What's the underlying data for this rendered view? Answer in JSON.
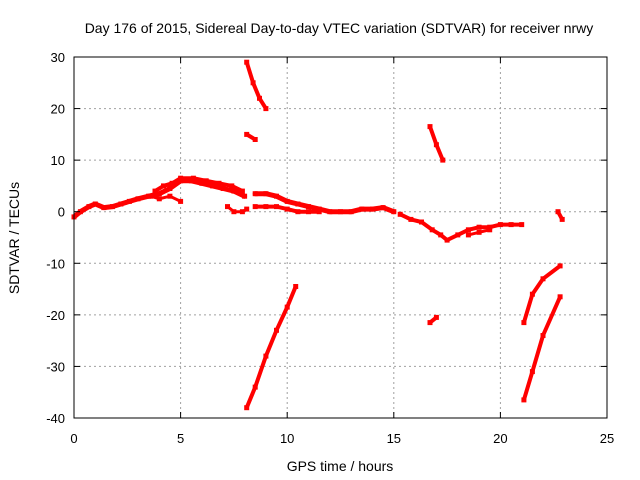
{
  "chart_data": {
    "type": "scatter",
    "title": "Day 176 of 2015, Sidereal Day-to-day VTEC variation (SDTVAR) for receiver nrwy",
    "xlabel": "GPS time / hours",
    "ylabel": "SDTVAR / TECUs",
    "xlim": [
      0,
      25
    ],
    "ylim": [
      -40,
      30
    ],
    "xticks": [
      0,
      5,
      10,
      15,
      20,
      25
    ],
    "yticks": [
      -40,
      -30,
      -20,
      -10,
      0,
      10,
      20,
      30
    ],
    "grid": true,
    "series_color": "#ff0000",
    "series": [
      {
        "name": "main-track-1",
        "width": 5,
        "points": [
          [
            0,
            -1
          ],
          [
            0.3,
            0
          ],
          [
            0.7,
            1
          ],
          [
            1,
            1.5
          ],
          [
            1.4,
            0.8
          ],
          [
            1.8,
            1
          ],
          [
            2.2,
            1.5
          ],
          [
            2.6,
            2
          ],
          [
            3,
            2.5
          ],
          [
            3.5,
            3
          ],
          [
            4,
            3.5
          ],
          [
            4.5,
            4.5
          ],
          [
            5,
            6
          ],
          [
            5.5,
            6
          ],
          [
            6,
            5.5
          ],
          [
            6.5,
            5
          ],
          [
            7,
            4.5
          ],
          [
            7.5,
            4
          ],
          [
            8,
            3
          ]
        ]
      },
      {
        "name": "main-track-1-upper",
        "width": 4,
        "points": [
          [
            3.8,
            4
          ],
          [
            4.2,
            5
          ],
          [
            4.6,
            5.5
          ],
          [
            5,
            6.5
          ],
          [
            5.6,
            6.5
          ],
          [
            6.2,
            6
          ],
          [
            6.8,
            5.5
          ],
          [
            7.4,
            5
          ],
          [
            7.9,
            4
          ]
        ]
      },
      {
        "name": "main-track-1-lower",
        "width": 3,
        "points": [
          [
            3.6,
            3
          ],
          [
            4,
            2.5
          ],
          [
            4.5,
            3
          ],
          [
            5,
            2
          ]
        ]
      },
      {
        "name": "main-track-1-dip",
        "width": 3,
        "points": [
          [
            7.2,
            1
          ],
          [
            7.5,
            0
          ],
          [
            7.9,
            0
          ],
          [
            8.1,
            0.5
          ]
        ]
      },
      {
        "name": "main-track-2",
        "width": 5,
        "points": [
          [
            8.5,
            3.5
          ],
          [
            9,
            3.5
          ],
          [
            9.5,
            3
          ],
          [
            10,
            2
          ],
          [
            10.5,
            1.5
          ],
          [
            11,
            1
          ],
          [
            11.5,
            0.5
          ],
          [
            12,
            0
          ],
          [
            12.5,
            0
          ],
          [
            13,
            0
          ],
          [
            13.5,
            0.5
          ],
          [
            14,
            0.5
          ],
          [
            14.5,
            0.8
          ],
          [
            15,
            0
          ]
        ]
      },
      {
        "name": "main-track-2-lower",
        "width": 4,
        "points": [
          [
            8.5,
            1
          ],
          [
            9,
            1
          ],
          [
            9.5,
            1
          ],
          [
            10,
            0.5
          ],
          [
            10.5,
            0
          ],
          [
            11,
            0
          ],
          [
            11.5,
            0
          ]
        ]
      },
      {
        "name": "main-track-3",
        "width": 4,
        "points": [
          [
            15.3,
            -0.5
          ],
          [
            15.8,
            -1.5
          ],
          [
            16.3,
            -2
          ],
          [
            16.8,
            -3.5
          ],
          [
            17.2,
            -4.5
          ],
          [
            17.5,
            -5.5
          ],
          [
            18,
            -4.5
          ],
          [
            18.5,
            -3.5
          ],
          [
            19,
            -3
          ],
          [
            19.5,
            -3
          ],
          [
            20,
            -2.5
          ],
          [
            20.5,
            -2.5
          ],
          [
            21,
            -2.5
          ]
        ]
      },
      {
        "name": "main-track-3-lower",
        "width": 3,
        "points": [
          [
            18.5,
            -4.5
          ],
          [
            19,
            -4
          ],
          [
            19.5,
            -3.5
          ]
        ]
      },
      {
        "name": "steep-descent-8h",
        "width": 4,
        "points": [
          [
            8.1,
            29
          ],
          [
            8.4,
            25
          ],
          [
            8.7,
            22
          ],
          [
            9,
            20
          ]
        ]
      },
      {
        "name": "short-arc-8h",
        "width": 4,
        "points": [
          [
            8.1,
            15
          ],
          [
            8.5,
            14
          ]
        ]
      },
      {
        "name": "steep-ascent-8-10h",
        "width": 4,
        "points": [
          [
            8.1,
            -38
          ],
          [
            8.5,
            -34
          ],
          [
            9,
            -28
          ],
          [
            9.5,
            -23
          ],
          [
            10,
            -18.5
          ],
          [
            10.4,
            -14.5
          ]
        ]
      },
      {
        "name": "steep-descent-17h",
        "width": 4,
        "points": [
          [
            16.7,
            16.5
          ],
          [
            17,
            13
          ],
          [
            17.3,
            10
          ]
        ]
      },
      {
        "name": "short-arc-17h",
        "width": 4,
        "points": [
          [
            16.7,
            -21.5
          ],
          [
            17,
            -20.5
          ]
        ]
      },
      {
        "name": "short-arc-22h",
        "width": 4,
        "points": [
          [
            22.7,
            0
          ],
          [
            22.9,
            -1.5
          ]
        ]
      },
      {
        "name": "ascent-21-23h-upper",
        "width": 4,
        "points": [
          [
            21.1,
            -21.5
          ],
          [
            21.5,
            -16
          ],
          [
            22,
            -13
          ],
          [
            22.8,
            -10.5
          ]
        ]
      },
      {
        "name": "ascent-21-23h-lower",
        "width": 4,
        "points": [
          [
            21.1,
            -36.5
          ],
          [
            21.5,
            -31
          ],
          [
            22,
            -24
          ],
          [
            22.8,
            -16.5
          ]
        ]
      }
    ]
  }
}
